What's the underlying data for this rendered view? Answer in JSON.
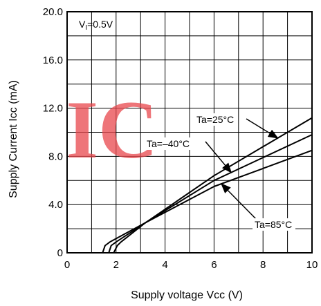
{
  "chart_data": {
    "type": "line",
    "title": "",
    "xlabel": "Supply voltage  Vcc (V)",
    "ylabel": "Supply Current  Icc (mA)",
    "xlim": [
      0,
      10
    ],
    "ylim": [
      0,
      20
    ],
    "xticks": [
      0,
      2,
      4,
      6,
      8,
      10
    ],
    "xtick_labels": [
      "0",
      "2",
      "4",
      "6",
      "8",
      "10"
    ],
    "yticks": [
      0,
      4,
      8,
      12,
      16,
      20
    ],
    "ytick_labels": [
      "0",
      "4.0",
      "8.0",
      "12.0",
      "16.0",
      "20.0"
    ],
    "grid": true,
    "condition": {
      "main": "V",
      "sub": "I",
      "rest": "=0.5V"
    },
    "series": [
      {
        "name": "Ta=25°C",
        "x": [
          0,
          1.45,
          1.55,
          1.75,
          3.2,
          6,
          8,
          10
        ],
        "y": [
          0,
          0,
          0.6,
          0.9,
          2.5,
          6.4,
          8.8,
          11.2
        ]
      },
      {
        "name": "Ta=–40°C",
        "x": [
          0,
          1.7,
          1.8,
          2.0,
          3.2,
          6,
          8,
          10
        ],
        "y": [
          0,
          0,
          0.6,
          0.9,
          2.5,
          6.0,
          7.9,
          9.8
        ]
      },
      {
        "name": "Ta=85°C",
        "x": [
          0,
          1.9,
          2.05,
          2.2,
          3.2,
          6,
          8,
          10
        ],
        "y": [
          0,
          0,
          0.6,
          0.9,
          2.5,
          5.5,
          7.0,
          8.5
        ]
      }
    ],
    "annotations": [
      {
        "text": "Ta=25°C",
        "series": 0,
        "at_x": 8.6
      },
      {
        "text": "Ta=–40°C",
        "series": 1,
        "at_x": 6.7
      },
      {
        "text": "Ta=85°C",
        "series": 2,
        "at_x": 6.3
      }
    ]
  },
  "watermark": {
    "text": "IC",
    "color": "#e8474c"
  }
}
